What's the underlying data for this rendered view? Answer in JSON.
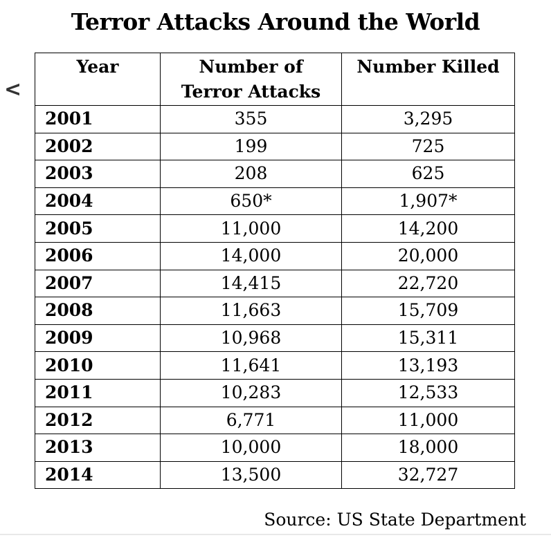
{
  "page": {
    "title": "Terror Attacks Around the World",
    "source": "Source: US State Department",
    "nav": {
      "back_label": "<"
    }
  },
  "chart_data": {
    "type": "table",
    "title": "Terror Attacks Around the World",
    "columns": [
      "Year",
      "Number of Terror Attacks",
      "Number Killed"
    ],
    "header_lines": [
      [
        "Year"
      ],
      [
        "Number of",
        "Terror Attacks"
      ],
      [
        "Number Killed"
      ]
    ],
    "rows": [
      {
        "year": "2001",
        "attacks": "355",
        "killed": "3,295"
      },
      {
        "year": "2002",
        "attacks": "199",
        "killed": "725"
      },
      {
        "year": "2003",
        "attacks": "208",
        "killed": "625"
      },
      {
        "year": "2004",
        "attacks": "650*",
        "killed": "1,907*"
      },
      {
        "year": "2005",
        "attacks": "11,000",
        "killed": "14,200"
      },
      {
        "year": "2006",
        "attacks": "14,000",
        "killed": "20,000"
      },
      {
        "year": "2007",
        "attacks": "14,415",
        "killed": "22,720"
      },
      {
        "year": "2008",
        "attacks": "11,663",
        "killed": "15,709"
      },
      {
        "year": "2009",
        "attacks": "10,968",
        "killed": "15,311"
      },
      {
        "year": "2010",
        "attacks": "11,641",
        "killed": "13,193"
      },
      {
        "year": "2011",
        "attacks": "10,283",
        "killed": "12,533"
      },
      {
        "year": "2012",
        "attacks": "6,771",
        "killed": "11,000"
      },
      {
        "year": "2013",
        "attacks": "10,000",
        "killed": "18,000"
      },
      {
        "year": "2014",
        "attacks": "13,500",
        "killed": "32,727"
      }
    ]
  }
}
